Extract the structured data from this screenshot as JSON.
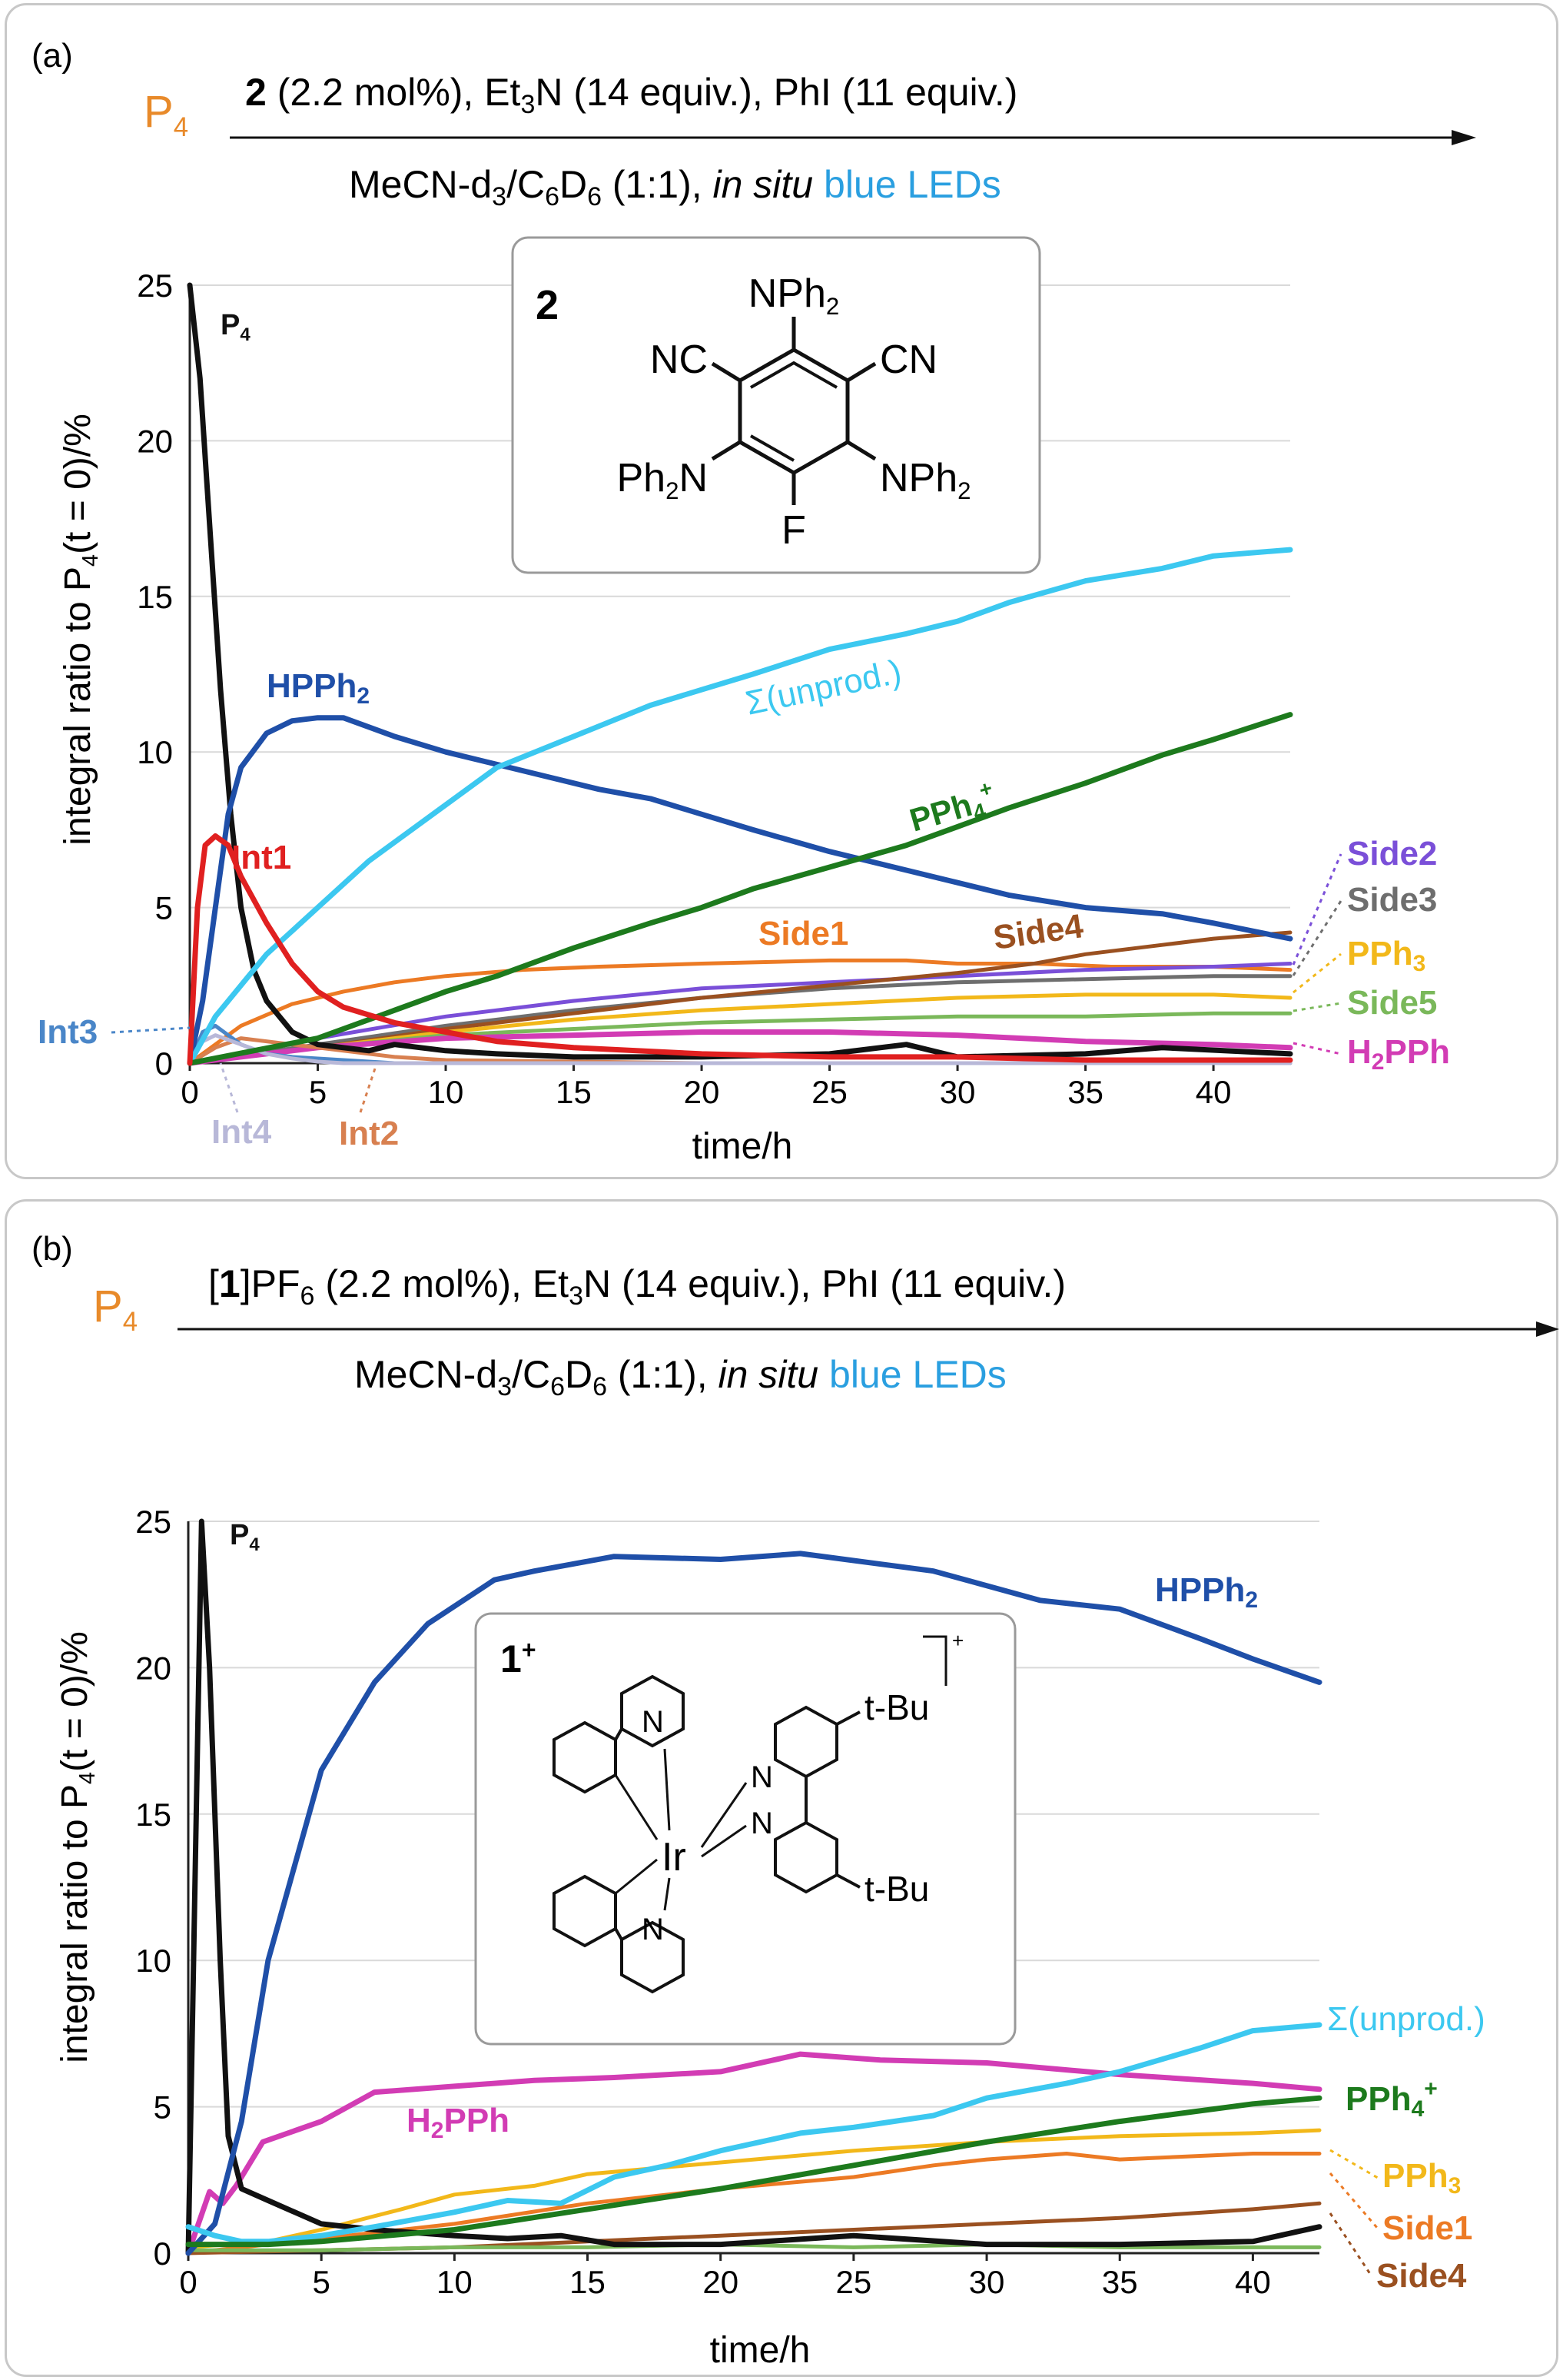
{
  "panels": [
    {
      "label": "(a)",
      "reactant": "P4",
      "conditions_top": "2 (2.2 mol%), Et3N (14 equiv.), PhI (11 equiv.)",
      "conditions_bottom": "MeCN-d3/C6D6 (1:1), in situ blue LEDs",
      "catalyst_label": "2",
      "catalyst_substituents": [
        "NPh2",
        "NC",
        "CN",
        "Ph2N",
        "NPh2",
        "F"
      ]
    },
    {
      "label": "(b)",
      "reactant": "P4",
      "conditions_top": "[1]PF6 (2.2 mol%), Et3N (14 equiv.), PhI (11 equiv.)",
      "conditions_bottom": "MeCN-d3/C6D6 (1:1), in situ blue LEDs",
      "catalyst_label": "1+",
      "catalyst_substituents": [
        "t-Bu",
        "t-Bu",
        "Ir",
        "N",
        "N",
        "N",
        "N",
        "+"
      ]
    }
  ],
  "colors": {
    "P4": "#111111",
    "HPPh2": "#1f4fa8",
    "unprod": "#3cc8f0",
    "PPh4": "#1d7a1d",
    "Int1": "#e02020",
    "Side1": "#ec7a24",
    "Side2": "#7a4fd8",
    "Side3": "#6e6e6e",
    "Side4": "#9a5020",
    "PPh3": "#f2b81a",
    "Side5": "#7ab85a",
    "H2PPh": "#d23cb4",
    "Int2": "#d88050",
    "Int3": "#4a86c8",
    "Int4": "#b8b8d8",
    "reactant": "#e88a2a",
    "led": "#2a9fe0"
  },
  "chart_data": [
    {
      "type": "line",
      "xlabel": "time/h",
      "ylabel": "integral ratio to P4(t = 0)/%",
      "xlim": [
        0,
        43
      ],
      "ylim": [
        0,
        25
      ],
      "xticks": [
        0,
        5,
        10,
        15,
        20,
        25,
        30,
        35,
        40
      ],
      "yticks": [
        0,
        5,
        10,
        15,
        20,
        25
      ],
      "grid": "horizontal",
      "series": [
        {
          "name": "P4",
          "x": [
            0,
            0.4,
            0.8,
            1.2,
            1.6,
            2,
            2.5,
            3,
            4,
            5,
            6,
            7,
            8,
            10,
            12,
            15,
            20,
            25,
            28,
            30,
            35,
            38,
            43
          ],
          "y": [
            25,
            22,
            17,
            12,
            8,
            5,
            3,
            2,
            1,
            0.6,
            0.5,
            0.4,
            0.6,
            0.4,
            0.3,
            0.2,
            0.2,
            0.3,
            0.6,
            0.2,
            0.3,
            0.5,
            0.3
          ]
        },
        {
          "name": "HPPh2",
          "x": [
            0,
            0.5,
            1,
            1.5,
            2,
            3,
            4,
            5,
            6,
            7,
            8,
            10,
            12,
            14,
            16,
            18,
            20,
            22,
            25,
            28,
            30,
            32,
            35,
            38,
            40,
            43
          ],
          "y": [
            0,
            2,
            5,
            8,
            9.5,
            10.6,
            11,
            11.1,
            11.1,
            10.8,
            10.5,
            10,
            9.6,
            9.2,
            8.8,
            8.5,
            8,
            7.5,
            6.8,
            6.2,
            5.8,
            5.4,
            5,
            4.8,
            4.5,
            4
          ]
        },
        {
          "name": "Σ(unprod.)",
          "x": [
            0,
            1,
            2,
            3,
            5,
            7,
            10,
            12,
            15,
            18,
            20,
            22,
            25,
            28,
            30,
            32,
            35,
            38,
            40,
            43
          ],
          "y": [
            0,
            1.5,
            2.5,
            3.5,
            5,
            6.5,
            8.3,
            9.5,
            10.5,
            11.5,
            12,
            12.5,
            13.3,
            13.8,
            14.2,
            14.8,
            15.5,
            15.9,
            16.3,
            16.5
          ]
        },
        {
          "name": "PPh4+",
          "x": [
            0,
            5,
            8,
            10,
            12,
            15,
            18,
            20,
            22,
            25,
            28,
            30,
            32,
            35,
            38,
            40,
            43
          ],
          "y": [
            0,
            0.8,
            1.7,
            2.3,
            2.8,
            3.7,
            4.5,
            5,
            5.6,
            6.3,
            7,
            7.6,
            8.2,
            9,
            9.9,
            10.4,
            11.2
          ]
        },
        {
          "name": "Int1",
          "x": [
            0,
            0.3,
            0.6,
            1,
            1.5,
            2,
            3,
            4,
            5,
            6,
            8,
            10,
            12,
            15,
            20,
            25,
            30,
            35,
            43
          ],
          "y": [
            0,
            5,
            7,
            7.3,
            7,
            6,
            4.5,
            3.2,
            2.3,
            1.8,
            1.3,
            1,
            0.7,
            0.5,
            0.3,
            0.2,
            0.2,
            0.1,
            0.1
          ]
        },
        {
          "name": "Side1",
          "x": [
            0,
            2,
            4,
            6,
            8,
            10,
            13,
            16,
            20,
            25,
            28,
            30,
            33,
            36,
            40,
            43
          ],
          "y": [
            0,
            1.2,
            1.9,
            2.3,
            2.6,
            2.8,
            3,
            3.1,
            3.2,
            3.3,
            3.3,
            3.2,
            3.2,
            3.1,
            3.1,
            3
          ]
        },
        {
          "name": "Side2",
          "x": [
            0,
            5,
            10,
            15,
            20,
            25,
            30,
            35,
            40,
            43
          ],
          "y": [
            0,
            0.8,
            1.5,
            2,
            2.4,
            2.6,
            2.8,
            3,
            3.1,
            3.2
          ]
        },
        {
          "name": "Side3",
          "x": [
            0,
            5,
            10,
            15,
            20,
            25,
            30,
            35,
            40,
            43
          ],
          "y": [
            0,
            0.6,
            1.2,
            1.7,
            2.1,
            2.4,
            2.6,
            2.7,
            2.8,
            2.8
          ]
        },
        {
          "name": "Side4",
          "x": [
            0,
            5,
            10,
            15,
            20,
            25,
            30,
            33,
            35,
            38,
            40,
            43
          ],
          "y": [
            0,
            0.5,
            1.1,
            1.6,
            2.1,
            2.5,
            2.9,
            3.2,
            3.5,
            3.8,
            4,
            4.2
          ]
        },
        {
          "name": "PPh3",
          "x": [
            0,
            5,
            10,
            15,
            20,
            25,
            30,
            35,
            40,
            43
          ],
          "y": [
            0,
            0.5,
            1,
            1.4,
            1.7,
            1.9,
            2.1,
            2.2,
            2.2,
            2.1
          ]
        },
        {
          "name": "Side5",
          "x": [
            0,
            5,
            10,
            15,
            20,
            25,
            30,
            35,
            40,
            43
          ],
          "y": [
            0,
            0.5,
            0.9,
            1.1,
            1.3,
            1.4,
            1.5,
            1.5,
            1.6,
            1.6
          ]
        },
        {
          "name": "H2PPh",
          "x": [
            0,
            5,
            10,
            15,
            20,
            25,
            30,
            35,
            40,
            43
          ],
          "y": [
            0,
            0.5,
            0.8,
            0.9,
            1,
            1,
            0.9,
            0.7,
            0.6,
            0.5
          ]
        },
        {
          "name": "Int2",
          "x": [
            0,
            1,
            2,
            4,
            6,
            8,
            10,
            15,
            20,
            30,
            43
          ],
          "y": [
            0,
            0.5,
            0.8,
            0.6,
            0.4,
            0.2,
            0.1,
            0.05,
            0,
            0,
            0
          ]
        },
        {
          "name": "Int3",
          "x": [
            0,
            0.5,
            1,
            1.5,
            2,
            3,
            4,
            6,
            8,
            10,
            43
          ],
          "y": [
            0,
            1,
            1.2,
            0.9,
            0.6,
            0.3,
            0.2,
            0.1,
            0,
            0,
            0
          ]
        },
        {
          "name": "Int4",
          "x": [
            0,
            0.5,
            1,
            2,
            3,
            4,
            5,
            6,
            43
          ],
          "y": [
            0,
            0.7,
            0.9,
            0.6,
            0.3,
            0.15,
            0.05,
            0,
            0
          ]
        }
      ],
      "annotations": [
        "P4",
        "HPPh2",
        "Σ(unprod.)",
        "PPh4+",
        "Int1",
        "Side1",
        "Side4",
        "Side2",
        "Side3",
        "PPh3",
        "Side5",
        "H2PPh",
        "Int3",
        "Int4",
        "Int2"
      ]
    },
    {
      "type": "line",
      "xlabel": "time/h",
      "ylabel": "integral ratio to P4(t = 0)/%",
      "xlim": [
        0,
        42.5
      ],
      "ylim": [
        0,
        25
      ],
      "xticks": [
        0,
        5,
        10,
        15,
        20,
        25,
        30,
        35,
        40
      ],
      "yticks": [
        0,
        5,
        10,
        15,
        20,
        25
      ],
      "grid": "horizontal",
      "series": [
        {
          "name": "P4",
          "x": [
            0,
            0.5,
            0.8,
            1.2,
            1.5,
            2,
            3,
            5,
            7,
            10,
            12,
            14,
            16,
            20,
            25,
            30,
            35,
            40,
            42.5
          ],
          "y": [
            0,
            25,
            20,
            10,
            4,
            2.2,
            1.8,
            1,
            0.8,
            0.6,
            0.5,
            0.6,
            0.3,
            0.3,
            0.6,
            0.3,
            0.3,
            0.4,
            0.9
          ]
        },
        {
          "name": "HPPh2",
          "x": [
            0,
            1,
            2,
            3,
            5,
            7,
            9,
            11.5,
            13,
            16,
            20,
            23,
            28,
            32,
            35,
            38,
            40,
            42.5
          ],
          "y": [
            0,
            1,
            4.5,
            10,
            16.5,
            19.5,
            21.5,
            23,
            23.3,
            23.8,
            23.7,
            23.9,
            23.3,
            22.3,
            22,
            21,
            20.3,
            19.5
          ]
        },
        {
          "name": "Σ(unprod.)",
          "x": [
            0,
            1,
            2,
            3,
            5,
            7,
            10,
            12,
            14,
            16,
            18,
            20,
            23,
            25,
            28,
            30,
            33,
            35,
            38,
            40,
            42.5
          ],
          "y": [
            0.9,
            0.6,
            0.4,
            0.4,
            0.6,
            0.9,
            1.4,
            1.8,
            1.7,
            2.6,
            3,
            3.5,
            4.1,
            4.3,
            4.7,
            5.3,
            5.8,
            6.2,
            7,
            7.6,
            7.8
          ]
        },
        {
          "name": "PPh4+",
          "x": [
            0,
            3,
            5,
            10,
            15,
            20,
            25,
            30,
            35,
            40,
            42.5
          ],
          "y": [
            0.3,
            0.3,
            0.4,
            0.8,
            1.5,
            2.2,
            3,
            3.8,
            4.5,
            5.1,
            5.3
          ]
        },
        {
          "name": "H2PPh",
          "x": [
            0,
            0.8,
            1.3,
            1.8,
            2.8,
            5,
            7,
            10,
            13,
            16,
            20,
            23,
            26,
            30,
            35,
            40,
            42.5
          ],
          "y": [
            0,
            2.1,
            1.7,
            2.3,
            3.8,
            4.5,
            5.5,
            5.7,
            5.9,
            6,
            6.2,
            6.8,
            6.6,
            6.5,
            6.1,
            5.8,
            5.6
          ]
        },
        {
          "name": "PPh3",
          "x": [
            0,
            3,
            5,
            8,
            10,
            13,
            15,
            20,
            25,
            30,
            35,
            40,
            42.5
          ],
          "y": [
            0.2,
            0.4,
            0.8,
            1.5,
            2,
            2.3,
            2.7,
            3.1,
            3.5,
            3.8,
            4,
            4.1,
            4.2
          ]
        },
        {
          "name": "Side1",
          "x": [
            0,
            3,
            5,
            10,
            15,
            20,
            25,
            28,
            30,
            33,
            35,
            40,
            42.5
          ],
          "y": [
            0,
            0.3,
            0.5,
            1,
            1.7,
            2.2,
            2.6,
            3,
            3.2,
            3.4,
            3.2,
            3.4,
            3.4
          ]
        },
        {
          "name": "Side4",
          "x": [
            0,
            5,
            10,
            15,
            20,
            25,
            30,
            35,
            40,
            42.5
          ],
          "y": [
            0,
            0.1,
            0.2,
            0.4,
            0.6,
            0.8,
            1,
            1.2,
            1.5,
            1.7
          ]
        },
        {
          "name": "Side5",
          "x": [
            0,
            5,
            10,
            15,
            20,
            25,
            30,
            35,
            40,
            42.5
          ],
          "y": [
            0.1,
            0.1,
            0.2,
            0.2,
            0.3,
            0.2,
            0.3,
            0.2,
            0.2,
            0.2
          ]
        }
      ],
      "annotations": [
        "P4",
        "HPPh2",
        "Σ(unprod.)",
        "H2PPh",
        "PPh4+",
        "PPh3",
        "Side1",
        "Side4"
      ]
    }
  ]
}
